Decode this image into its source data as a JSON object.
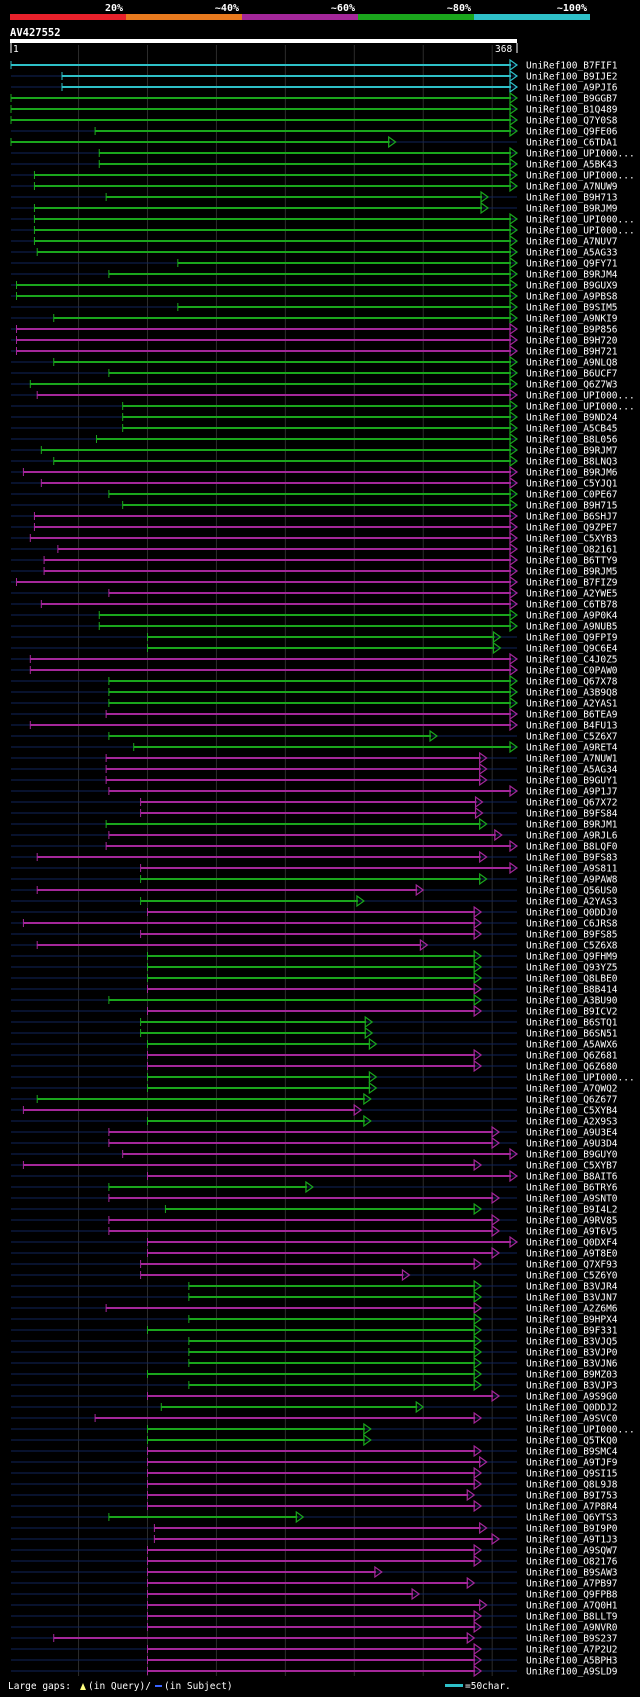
{
  "chart_data": {
    "type": "alignment-overview",
    "query_id": "AV427552",
    "query_start": "1",
    "query_end": "368",
    "query_length": 368,
    "identity_legend": [
      {
        "label": "20%",
        "color": "#e8212b"
      },
      {
        "label": "~40%",
        "color": "#e87a1e"
      },
      {
        "label": "~60%",
        "color": "#a4279a"
      },
      {
        "label": "~80%",
        "color": "#1aa61c"
      },
      {
        "label": "~100%",
        "color": "#2ec0c8"
      }
    ],
    "footer": {
      "large_gaps": "Large gaps:",
      "in_query": "(in Query)/",
      "in_subject": "(in Subject)",
      "scale": "=50char."
    },
    "hits": [
      {
        "name": "UniRef100_B7FIF1",
        "start": 1,
        "end": 368,
        "identity": "~100%"
      },
      {
        "name": "UniRef100_B9IJE2",
        "start": 38,
        "end": 368,
        "identity": "~100%"
      },
      {
        "name": "UniRef100_A9PJI6",
        "start": 38,
        "end": 368,
        "identity": "~100%"
      },
      {
        "name": "UniRef100_B9GGB7",
        "start": 1,
        "end": 368,
        "identity": "~80%"
      },
      {
        "name": "UniRef100_B1Q489",
        "start": 1,
        "end": 368,
        "identity": "~80%"
      },
      {
        "name": "UniRef100_Q7Y0S8",
        "start": 1,
        "end": 368,
        "identity": "~80%"
      },
      {
        "name": "UniRef100_Q9FE06",
        "start": 62,
        "end": 368,
        "identity": "~80%"
      },
      {
        "name": "UniRef100_C6TDA1",
        "start": 1,
        "end": 280,
        "identity": "~80%"
      },
      {
        "name": "UniRef100_UPI000...",
        "start": 65,
        "end": 368,
        "identity": "~80%"
      },
      {
        "name": "UniRef100_A5BK43",
        "start": 65,
        "end": 368,
        "identity": "~80%"
      },
      {
        "name": "UniRef100_UPI000...",
        "start": 18,
        "end": 368,
        "identity": "~80%"
      },
      {
        "name": "UniRef100_A7NUW9",
        "start": 18,
        "end": 368,
        "identity": "~80%"
      },
      {
        "name": "UniRef100_B9H713",
        "start": 70,
        "end": 347,
        "identity": "~80%"
      },
      {
        "name": "UniRef100_B9RJM9",
        "start": 18,
        "end": 347,
        "identity": "~80%"
      },
      {
        "name": "UniRef100_UPI000...",
        "start": 18,
        "end": 368,
        "identity": "~80%"
      },
      {
        "name": "UniRef100_UPI000...",
        "start": 18,
        "end": 368,
        "identity": "~80%"
      },
      {
        "name": "UniRef100_A7NUV7",
        "start": 18,
        "end": 368,
        "identity": "~80%"
      },
      {
        "name": "UniRef100_A5AG33",
        "start": 20,
        "end": 368,
        "identity": "~80%"
      },
      {
        "name": "UniRef100_Q9FY71",
        "start": 122,
        "end": 368,
        "identity": "~80%"
      },
      {
        "name": "UniRef100_B9RJM4",
        "start": 72,
        "end": 368,
        "identity": "~80%"
      },
      {
        "name": "UniRef100_B9GUX9",
        "start": 5,
        "end": 368,
        "identity": "~80%"
      },
      {
        "name": "UniRef100_A9PBS8",
        "start": 5,
        "end": 368,
        "identity": "~80%"
      },
      {
        "name": "UniRef100_B9SIM5",
        "start": 122,
        "end": 368,
        "identity": "~80%"
      },
      {
        "name": "UniRef100_A9NKI9",
        "start": 32,
        "end": 368,
        "identity": "~80%"
      },
      {
        "name": "UniRef100_B9P856",
        "start": 5,
        "end": 368,
        "identity": "~60%"
      },
      {
        "name": "UniRef100_B9H720",
        "start": 5,
        "end": 368,
        "identity": "~60%"
      },
      {
        "name": "UniRef100_B9H721",
        "start": 5,
        "end": 368,
        "identity": "~60%"
      },
      {
        "name": "UniRef100_A9NLQ8",
        "start": 32,
        "end": 368,
        "identity": "~80%"
      },
      {
        "name": "UniRef100_B6UCF7",
        "start": 72,
        "end": 368,
        "identity": "~80%"
      },
      {
        "name": "UniRef100_Q6Z7W3",
        "start": 15,
        "end": 368,
        "identity": "~80%"
      },
      {
        "name": "UniRef100_UPI000...",
        "start": 20,
        "end": 368,
        "identity": "~60%"
      },
      {
        "name": "UniRef100_UPI000...",
        "start": 82,
        "end": 368,
        "identity": "~80%"
      },
      {
        "name": "UniRef100_B9ND24",
        "start": 82,
        "end": 368,
        "identity": "~80%"
      },
      {
        "name": "UniRef100_A5CB45",
        "start": 82,
        "end": 368,
        "identity": "~80%"
      },
      {
        "name": "UniRef100_B8L056",
        "start": 63,
        "end": 368,
        "identity": "~80%"
      },
      {
        "name": "UniRef100_B9RJM7",
        "start": 23,
        "end": 368,
        "identity": "~80%"
      },
      {
        "name": "UniRef100_B8LNQ3",
        "start": 32,
        "end": 368,
        "identity": "~80%"
      },
      {
        "name": "UniRef100_B9RJM6",
        "start": 10,
        "end": 368,
        "identity": "~60%"
      },
      {
        "name": "UniRef100_C5YJQ1",
        "start": 23,
        "end": 368,
        "identity": "~60%"
      },
      {
        "name": "UniRef100_C0PE67",
        "start": 72,
        "end": 368,
        "identity": "~80%"
      },
      {
        "name": "UniRef100_B9H715",
        "start": 82,
        "end": 368,
        "identity": "~80%"
      },
      {
        "name": "UniRef100_B6SHJ7",
        "start": 18,
        "end": 368,
        "identity": "~60%"
      },
      {
        "name": "UniRef100_Q9ZPE7",
        "start": 18,
        "end": 368,
        "identity": "~60%"
      },
      {
        "name": "UniRef100_C5XYB3",
        "start": 15,
        "end": 368,
        "identity": "~60%"
      },
      {
        "name": "UniRef100_O82161",
        "start": 35,
        "end": 368,
        "identity": "~60%"
      },
      {
        "name": "UniRef100_B6TTY9",
        "start": 25,
        "end": 368,
        "identity": "~60%"
      },
      {
        "name": "UniRef100_B9RJM5",
        "start": 25,
        "end": 368,
        "identity": "~60%"
      },
      {
        "name": "UniRef100_B7FIZ9",
        "start": 5,
        "end": 368,
        "identity": "~60%"
      },
      {
        "name": "UniRef100_A2YWE5",
        "start": 72,
        "end": 368,
        "identity": "~60%"
      },
      {
        "name": "UniRef100_C6TB78",
        "start": 23,
        "end": 368,
        "identity": "~60%"
      },
      {
        "name": "UniRef100_A9P0K4",
        "start": 65,
        "end": 368,
        "identity": "~80%"
      },
      {
        "name": "UniRef100_A9NUB5",
        "start": 65,
        "end": 368,
        "identity": "~80%"
      },
      {
        "name": "UniRef100_Q9FPI9",
        "start": 100,
        "end": 356,
        "identity": "~80%"
      },
      {
        "name": "UniRef100_Q9C6E4",
        "start": 100,
        "end": 356,
        "identity": "~80%"
      },
      {
        "name": "UniRef100_C4J0Z5",
        "start": 15,
        "end": 368,
        "identity": "~60%"
      },
      {
        "name": "UniRef100_C0PAW0",
        "start": 15,
        "end": 368,
        "identity": "~60%"
      },
      {
        "name": "UniRef100_Q67X78",
        "start": 72,
        "end": 368,
        "identity": "~80%"
      },
      {
        "name": "UniRef100_A3B9Q8",
        "start": 72,
        "end": 368,
        "identity": "~80%"
      },
      {
        "name": "UniRef100_A2YAS1",
        "start": 72,
        "end": 368,
        "identity": "~80%"
      },
      {
        "name": "UniRef100_B6TEA9",
        "start": 70,
        "end": 368,
        "identity": "~60%"
      },
      {
        "name": "UniRef100_B4FU13",
        "start": 15,
        "end": 368,
        "identity": "~60%"
      },
      {
        "name": "UniRef100_C5Z6X7",
        "start": 72,
        "end": 310,
        "identity": "~80%"
      },
      {
        "name": "UniRef100_A9RET4",
        "start": 90,
        "end": 368,
        "identity": "~80%"
      },
      {
        "name": "UniRef100_A7NUW1",
        "start": 70,
        "end": 346,
        "identity": "~60%"
      },
      {
        "name": "UniRef100_A5AG34",
        "start": 70,
        "end": 346,
        "identity": "~60%"
      },
      {
        "name": "UniRef100_B9GUY1",
        "start": 70,
        "end": 346,
        "identity": "~60%"
      },
      {
        "name": "UniRef100_A9P1J7",
        "start": 72,
        "end": 368,
        "identity": "~60%"
      },
      {
        "name": "UniRef100_Q67X72",
        "start": 95,
        "end": 343,
        "identity": "~60%"
      },
      {
        "name": "UniRef100_B9FS84",
        "start": 95,
        "end": 343,
        "identity": "~60%"
      },
      {
        "name": "UniRef100_B9RJM1",
        "start": 70,
        "end": 346,
        "identity": "~80%"
      },
      {
        "name": "UniRef100_A9RJL6",
        "start": 72,
        "end": 357,
        "identity": "~60%"
      },
      {
        "name": "UniRef100_B8LQF0",
        "start": 70,
        "end": 368,
        "identity": "~60%"
      },
      {
        "name": "UniRef100_B9FS83",
        "start": 20,
        "end": 346,
        "identity": "~60%"
      },
      {
        "name": "UniRef100_A9S811",
        "start": 95,
        "end": 368,
        "identity": "~60%"
      },
      {
        "name": "UniRef100_A9PAW8",
        "start": 95,
        "end": 346,
        "identity": "~80%"
      },
      {
        "name": "UniRef100_Q56US0",
        "start": 20,
        "end": 300,
        "identity": "~60%"
      },
      {
        "name": "UniRef100_A2YAS3",
        "start": 95,
        "end": 257,
        "identity": "~80%"
      },
      {
        "name": "UniRef100_Q0DDJ0",
        "start": 100,
        "end": 342,
        "identity": "~60%"
      },
      {
        "name": "UniRef100_C6JRS8",
        "start": 10,
        "end": 342,
        "identity": "~60%"
      },
      {
        "name": "UniRef100_B9FS85",
        "start": 95,
        "end": 342,
        "identity": "~60%"
      },
      {
        "name": "UniRef100_C5Z6X8",
        "start": 20,
        "end": 303,
        "identity": "~60%"
      },
      {
        "name": "UniRef100_Q9FHM9",
        "start": 100,
        "end": 342,
        "identity": "~80%"
      },
      {
        "name": "UniRef100_Q93YZ5",
        "start": 100,
        "end": 342,
        "identity": "~80%"
      },
      {
        "name": "UniRef100_Q8LBE0",
        "start": 100,
        "end": 342,
        "identity": "~80%"
      },
      {
        "name": "UniRef100_B8B414",
        "start": 100,
        "end": 342,
        "identity": "~60%"
      },
      {
        "name": "UniRef100_A3BU90",
        "start": 72,
        "end": 342,
        "identity": "~80%"
      },
      {
        "name": "UniRef100_B9ICV2",
        "start": 100,
        "end": 342,
        "identity": "~60%"
      },
      {
        "name": "UniRef100_B6STQ1",
        "start": 95,
        "end": 263,
        "identity": "~80%"
      },
      {
        "name": "UniRef100_B6SN51",
        "start": 95,
        "end": 263,
        "identity": "~80%"
      },
      {
        "name": "UniRef100_A5AWX6",
        "start": 100,
        "end": 266,
        "identity": "~80%"
      },
      {
        "name": "UniRef100_Q6Z681",
        "start": 100,
        "end": 342,
        "identity": "~60%"
      },
      {
        "name": "UniRef100_Q6Z680",
        "start": 100,
        "end": 342,
        "identity": "~60%"
      },
      {
        "name": "UniRef100_UPI000...",
        "start": 100,
        "end": 266,
        "identity": "~80%"
      },
      {
        "name": "UniRef100_A7QWQ2",
        "start": 100,
        "end": 266,
        "identity": "~80%"
      },
      {
        "name": "UniRef100_Q6Z677",
        "start": 20,
        "end": 262,
        "identity": "~80%"
      },
      {
        "name": "UniRef100_C5XYB4",
        "start": 10,
        "end": 255,
        "identity": "~60%"
      },
      {
        "name": "UniRef100_A2X9S3",
        "start": 100,
        "end": 262,
        "identity": "~80%"
      },
      {
        "name": "UniRef100_A9U3E4",
        "start": 72,
        "end": 355,
        "identity": "~60%"
      },
      {
        "name": "UniRef100_A9U3D4",
        "start": 72,
        "end": 355,
        "identity": "~60%"
      },
      {
        "name": "UniRef100_B9GUY0",
        "start": 82,
        "end": 368,
        "identity": "~60%"
      },
      {
        "name": "UniRef100_C5XYB7",
        "start": 10,
        "end": 342,
        "identity": "~60%"
      },
      {
        "name": "UniRef100_B8AIT6",
        "start": 100,
        "end": 368,
        "identity": "~60%"
      },
      {
        "name": "UniRef100_B6TRY6",
        "start": 72,
        "end": 220,
        "identity": "~80%"
      },
      {
        "name": "UniRef100_A9SNT0",
        "start": 72,
        "end": 355,
        "identity": "~60%"
      },
      {
        "name": "UniRef100_B9I4L2",
        "start": 113,
        "end": 342,
        "identity": "~80%"
      },
      {
        "name": "UniRef100_A9RV85",
        "start": 72,
        "end": 355,
        "identity": "~60%"
      },
      {
        "name": "UniRef100_A9T6V5",
        "start": 72,
        "end": 355,
        "identity": "~60%"
      },
      {
        "name": "UniRef100_Q0DXF4",
        "start": 100,
        "end": 368,
        "identity": "~60%"
      },
      {
        "name": "UniRef100_A9T8E0",
        "start": 100,
        "end": 355,
        "identity": "~60%"
      },
      {
        "name": "UniRef100_Q7XF93",
        "start": 95,
        "end": 342,
        "identity": "~60%"
      },
      {
        "name": "UniRef100_C5Z6Y0",
        "start": 95,
        "end": 290,
        "identity": "~60%"
      },
      {
        "name": "UniRef100_B3VJR4",
        "start": 130,
        "end": 342,
        "identity": "~80%"
      },
      {
        "name": "UniRef100_B3VJN7",
        "start": 130,
        "end": 342,
        "identity": "~80%"
      },
      {
        "name": "UniRef100_A2Z6M6",
        "start": 70,
        "end": 342,
        "identity": "~60%"
      },
      {
        "name": "UniRef100_B9HPX4",
        "start": 130,
        "end": 342,
        "identity": "~80%"
      },
      {
        "name": "UniRef100_B9F331",
        "start": 100,
        "end": 342,
        "identity": "~80%"
      },
      {
        "name": "UniRef100_B3VJQ5",
        "start": 130,
        "end": 342,
        "identity": "~80%"
      },
      {
        "name": "UniRef100_B3VJP0",
        "start": 130,
        "end": 342,
        "identity": "~80%"
      },
      {
        "name": "UniRef100_B3VJN6",
        "start": 130,
        "end": 342,
        "identity": "~80%"
      },
      {
        "name": "UniRef100_B9MZ03",
        "start": 100,
        "end": 342,
        "identity": "~80%"
      },
      {
        "name": "UniRef100_B3VJP3",
        "start": 130,
        "end": 342,
        "identity": "~80%"
      },
      {
        "name": "UniRef100_A9S9G0",
        "start": 100,
        "end": 355,
        "identity": "~60%"
      },
      {
        "name": "UniRef100_Q0DDJ2",
        "start": 110,
        "end": 300,
        "identity": "~80%"
      },
      {
        "name": "UniRef100_A9SVC0",
        "start": 62,
        "end": 342,
        "identity": "~60%"
      },
      {
        "name": "UniRef100_UPI000...",
        "start": 100,
        "end": 262,
        "identity": "~80%"
      },
      {
        "name": "UniRef100_Q5TKQ0",
        "start": 100,
        "end": 262,
        "identity": "~80%"
      },
      {
        "name": "UniRef100_B9SMC4",
        "start": 100,
        "end": 342,
        "identity": "~60%"
      },
      {
        "name": "UniRef100_A9TJF9",
        "start": 100,
        "end": 346,
        "identity": "~60%"
      },
      {
        "name": "UniRef100_Q9SI15",
        "start": 100,
        "end": 342,
        "identity": "~60%"
      },
      {
        "name": "UniRef100_Q8L9J8",
        "start": 100,
        "end": 342,
        "identity": "~60%"
      },
      {
        "name": "UniRef100_B9I753",
        "start": 100,
        "end": 337,
        "identity": "~60%"
      },
      {
        "name": "UniRef100_A7P8R4",
        "start": 100,
        "end": 342,
        "identity": "~60%"
      },
      {
        "name": "UniRef100_Q6YTS3",
        "start": 72,
        "end": 213,
        "identity": "~80%"
      },
      {
        "name": "UniRef100_B9I9P0",
        "start": 105,
        "end": 346,
        "identity": "~60%"
      },
      {
        "name": "UniRef100_A9T1J3",
        "start": 105,
        "end": 355,
        "identity": "~60%"
      },
      {
        "name": "UniRef100_A9SQW7",
        "start": 100,
        "end": 342,
        "identity": "~60%"
      },
      {
        "name": "UniRef100_O82176",
        "start": 100,
        "end": 342,
        "identity": "~60%"
      },
      {
        "name": "UniRef100_B9SAW3",
        "start": 100,
        "end": 270,
        "identity": "~60%"
      },
      {
        "name": "UniRef100_A7PB97",
        "start": 100,
        "end": 337,
        "identity": "~60%"
      },
      {
        "name": "UniRef100_Q9FPB8",
        "start": 100,
        "end": 297,
        "identity": "~60%"
      },
      {
        "name": "UniRef100_A7Q0H1",
        "start": 100,
        "end": 346,
        "identity": "~60%"
      },
      {
        "name": "UniRef100_B8LLT9",
        "start": 100,
        "end": 342,
        "identity": "~60%"
      },
      {
        "name": "UniRef100_A9NVR0",
        "start": 100,
        "end": 342,
        "identity": "~60%"
      },
      {
        "name": "UniRef100_B9S237",
        "start": 32,
        "end": 337,
        "identity": "~60%"
      },
      {
        "name": "UniRef100_A7P2U2",
        "start": 100,
        "end": 342,
        "identity": "~60%"
      },
      {
        "name": "UniRef100_A5BPH3",
        "start": 100,
        "end": 342,
        "identity": "~60%"
      },
      {
        "name": "UniRef100_A9SLD9",
        "start": 100,
        "end": 342,
        "identity": "~60%"
      }
    ]
  }
}
